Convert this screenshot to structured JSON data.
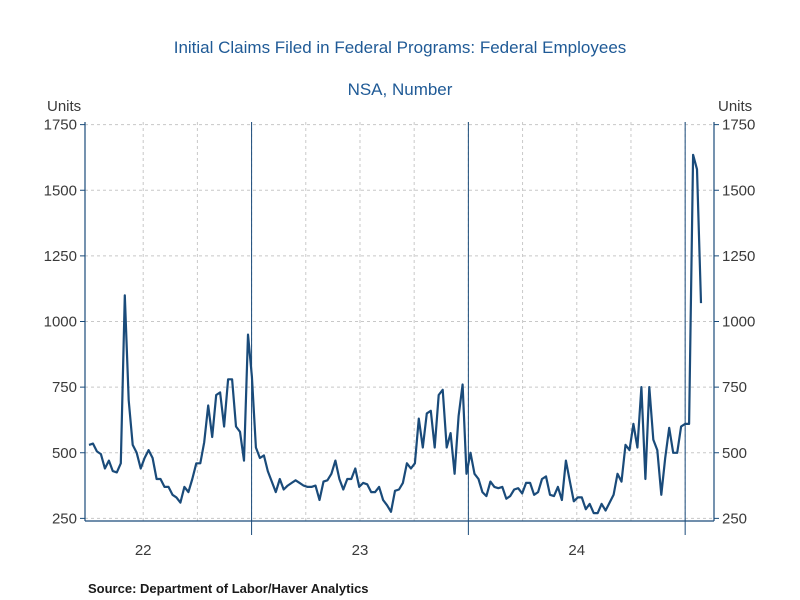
{
  "chart_data": {
    "type": "line",
    "title": "Initial Claims Filed in Federal Programs: Federal Employees",
    "subtitle": "NSA, Number",
    "ylabel_left": "Units",
    "ylabel_right": "Units",
    "ylim": [
      240,
      1760
    ],
    "yticks": [
      250,
      500,
      750,
      1000,
      1250,
      1500,
      1750
    ],
    "ytick_labels": [
      "250",
      "500",
      "750",
      "1000",
      "1250",
      "1500",
      "1750"
    ],
    "xlim": [
      0,
      148
    ],
    "year_labels": [
      {
        "label": "22",
        "center": 13
      },
      {
        "label": "23",
        "center": 65
      },
      {
        "label": "24",
        "center": 117
      }
    ],
    "year_boundaries": [
      39,
      91,
      143
    ],
    "grid": true,
    "color": "#1a4b7a",
    "series": [
      {
        "values": [
          530,
          535,
          505,
          495,
          440,
          470,
          430,
          425,
          460,
          1100,
          700,
          530,
          500,
          440,
          480,
          510,
          480,
          400,
          400,
          370,
          370,
          340,
          330,
          310,
          370,
          350,
          400,
          460,
          460,
          540,
          680,
          560,
          720,
          730,
          600,
          780,
          780,
          600,
          580,
          470,
          950,
          790,
          520,
          480,
          490,
          430,
          390,
          350,
          400,
          360,
          375,
          385,
          395,
          385,
          375,
          370,
          370,
          375,
          320,
          390,
          395,
          420,
          470,
          400,
          360,
          400,
          400,
          440,
          370,
          385,
          380,
          350,
          350,
          370,
          320,
          300,
          275,
          355,
          360,
          385,
          460,
          440,
          460,
          630,
          520,
          650,
          660,
          520,
          720,
          740,
          520,
          575,
          420,
          640,
          760,
          420,
          500,
          420,
          400,
          350,
          335,
          390,
          370,
          365,
          370,
          325,
          335,
          360,
          365,
          345,
          385,
          385,
          340,
          350,
          400,
          410,
          340,
          335,
          370,
          320,
          470,
          390,
          315,
          330,
          330,
          285,
          305,
          270,
          270,
          305,
          280,
          310,
          340,
          420,
          390,
          530,
          510,
          610,
          520,
          750,
          400,
          750,
          550,
          510,
          340,
          480,
          595,
          500,
          500,
          600,
          610,
          610,
          1635,
          1580,
          1070
        ]
      }
    ]
  },
  "source": "Source:  Department of Labor/Haver Analytics"
}
